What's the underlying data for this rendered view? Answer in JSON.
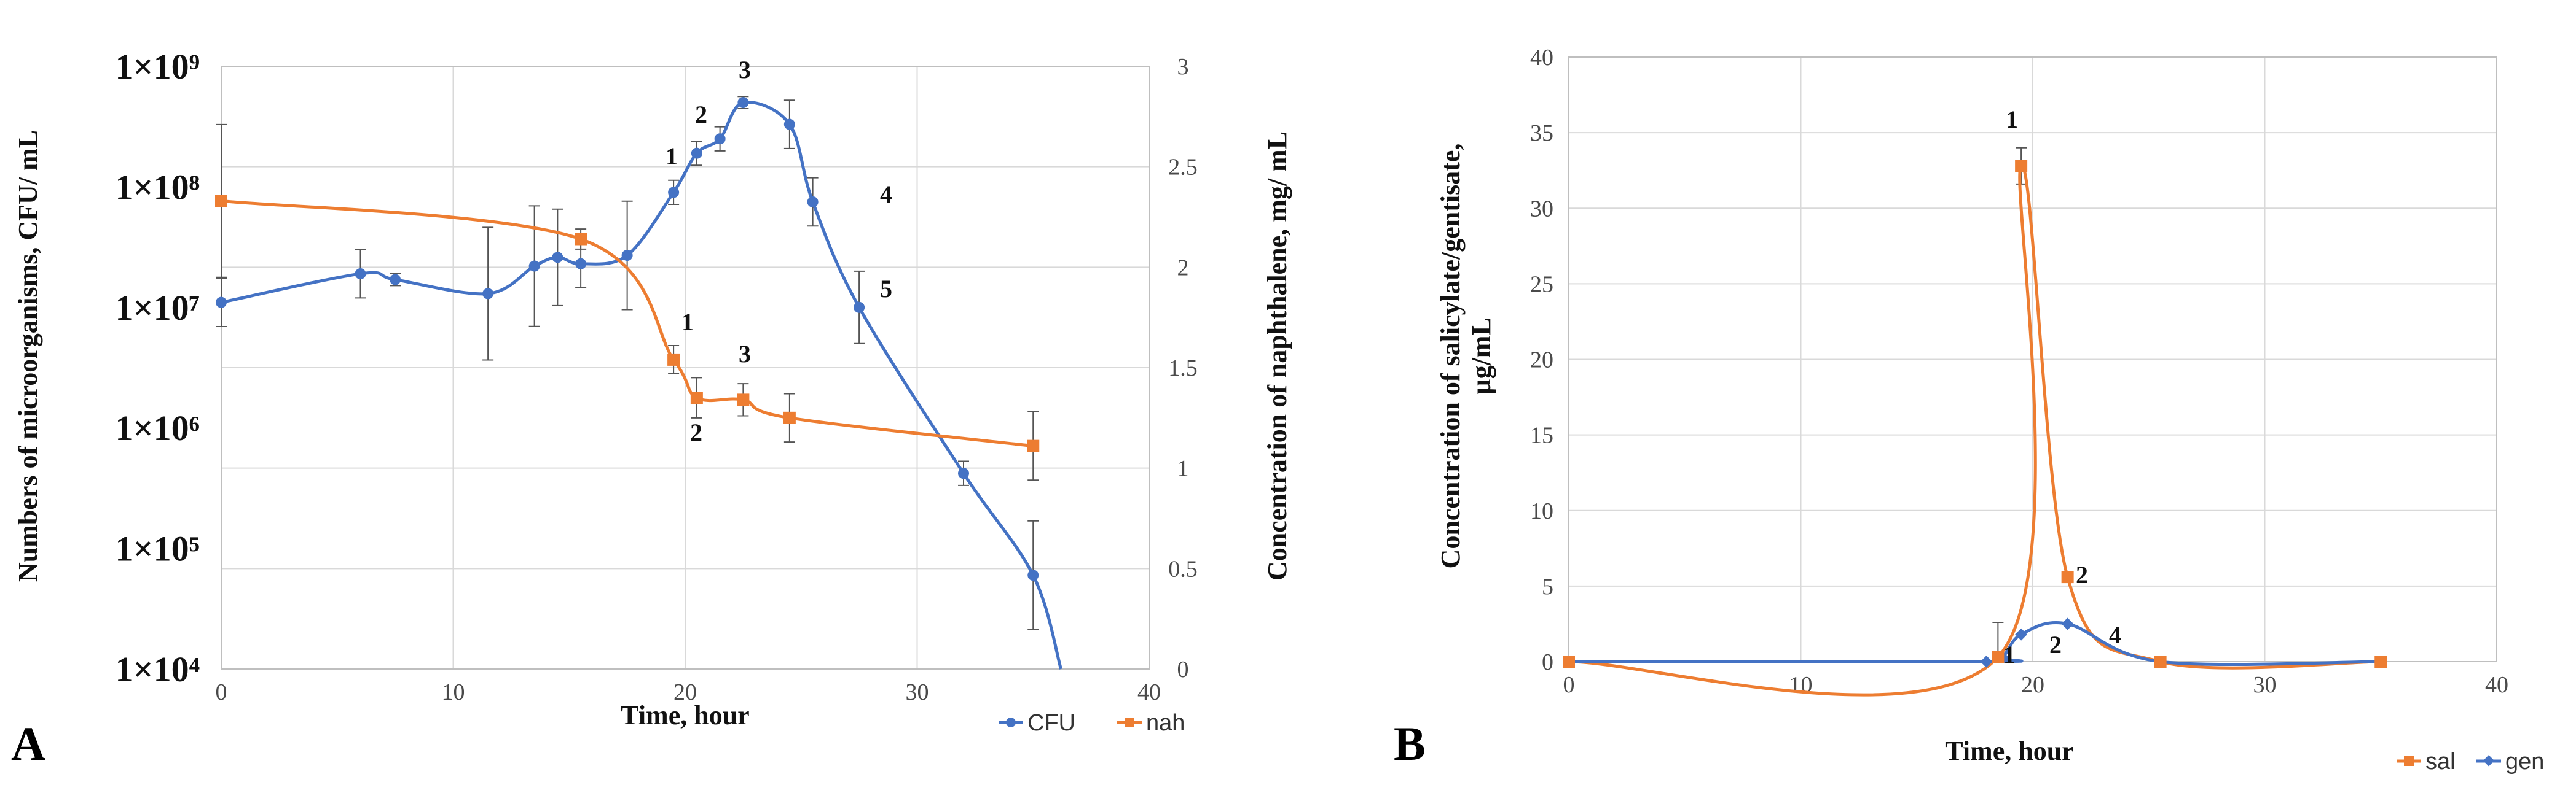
{
  "chart_data": [
    {
      "panel": "A",
      "type": "line",
      "xlabel": "Time, hour",
      "ylabel_left": "Numbers of microorganisms, CFU/ mL",
      "ylabel_right": "Concentration of naphthalene, mg/ mL",
      "x_ticks": [
        "0",
        "10",
        "20",
        "30",
        "40"
      ],
      "xlim": [
        0,
        40
      ],
      "ylim_left_log10": [
        4,
        9
      ],
      "y_left_ticks": [
        "1×10⁹",
        "1×10⁸",
        "1×10⁷",
        "1×10⁶",
        "1×10⁵",
        "1×10⁴"
      ],
      "ylim_right": [
        0,
        3
      ],
      "y_right_ticks": [
        "3",
        "2.5",
        "2",
        "1.5",
        "1",
        "0.5",
        "0"
      ],
      "grid": true,
      "legend_position": "bottom-right",
      "series": [
        {
          "name": "CFU",
          "axis": "left",
          "color": "#4472c4",
          "marker": "circle",
          "x": [
            0,
            6,
            7.5,
            11.5,
            13.5,
            14.5,
            15.5,
            17.5,
            19.5,
            20.5,
            21.5,
            22.5,
            24.5,
            25.5,
            27.5,
            32,
            35,
            36.2
          ],
          "y": [
            11000000,
            19000000,
            17000000,
            13000000,
            22000000,
            26000000,
            23000000,
            27000000,
            90000000,
            190000000,
            250000000,
            500000000,
            330000000,
            75000000,
            10000000,
            420000,
            60000,
            10000
          ],
          "err_log10": [
            0.2,
            0.2,
            0.05,
            0.55,
            0.5,
            0.4,
            0.2,
            0.45,
            0.1,
            0.1,
            0.1,
            0.05,
            0.2,
            0.2,
            0.3,
            0.1,
            0.45,
            0
          ]
        },
        {
          "name": "nah",
          "axis": "right",
          "color": "#ed7d31",
          "marker": "square",
          "x": [
            0,
            15.5,
            19.5,
            20.5,
            22.5,
            24.5,
            35
          ],
          "y": [
            2.33,
            2.14,
            1.54,
            1.35,
            1.34,
            1.25,
            1.11
          ],
          "err": [
            0.38,
            0.05,
            0.07,
            0.1,
            0.08,
            0.12,
            0.17
          ]
        }
      ],
      "annotations_cfu": [
        "1",
        "2",
        "3",
        "4",
        "5"
      ],
      "annotations_nah": [
        "1",
        "2",
        "3"
      ]
    },
    {
      "panel": "B",
      "type": "line",
      "xlabel": "Time, hour",
      "ylabel": "Concentration of salicylate/gentisate, µg/mL",
      "x_ticks": [
        "0",
        "10",
        "20",
        "30",
        "40"
      ],
      "xlim": [
        0,
        40
      ],
      "ylim": [
        0,
        40
      ],
      "y_ticks": [
        "40",
        "35",
        "30",
        "25",
        "20",
        "15",
        "10",
        "5",
        "0"
      ],
      "grid": true,
      "legend_position": "bottom-right",
      "series": [
        {
          "name": "sal",
          "color": "#ed7d31",
          "marker": "square",
          "x": [
            0,
            18.5,
            19.5,
            21.5,
            25.5,
            35
          ],
          "y": [
            0,
            0.3,
            32.8,
            5.6,
            0,
            0
          ],
          "err": [
            0,
            2.3,
            1.2,
            0,
            0,
            0
          ]
        },
        {
          "name": "gen",
          "color": "#4472c4",
          "marker": "diamond",
          "x": [
            0,
            18,
            18.7,
            19.5,
            21.5,
            25.5,
            35
          ],
          "y": [
            0,
            0,
            0.3,
            1.8,
            2.5,
            0,
            0
          ]
        }
      ],
      "annotations": [
        "1",
        "1",
        "2",
        "2",
        "4"
      ]
    }
  ]
}
